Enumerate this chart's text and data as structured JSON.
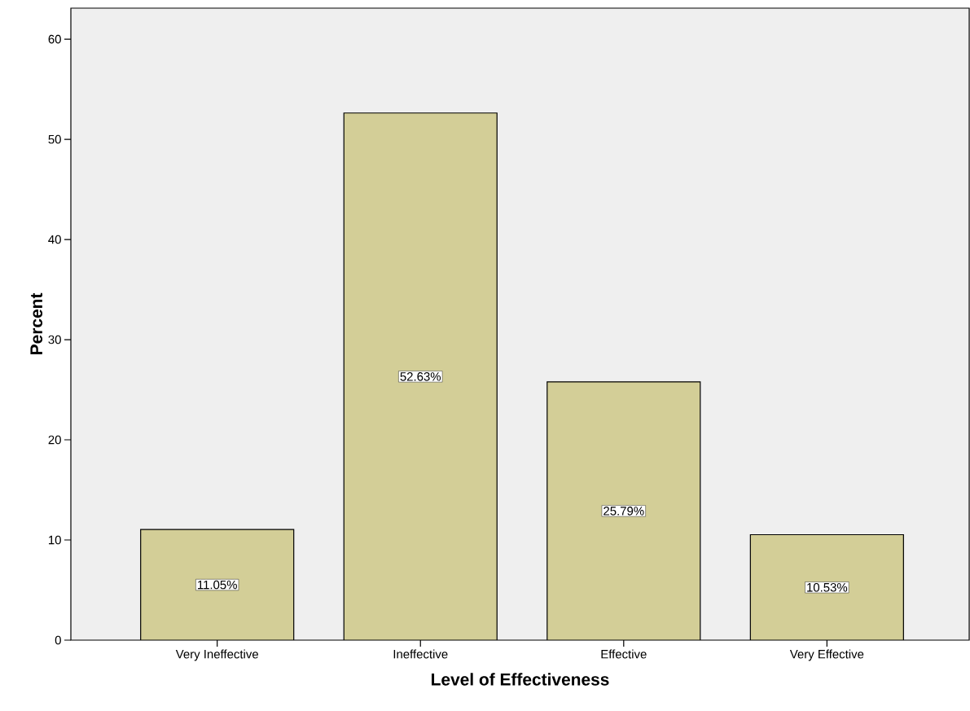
{
  "chart_data": {
    "type": "bar",
    "xlabel": "Level of Effectiveness",
    "ylabel": "Percent",
    "categories": [
      "Very Ineffective",
      "Ineffective",
      "Effective",
      "Very Effective"
    ],
    "values": [
      11.05,
      52.63,
      25.79,
      10.53
    ],
    "value_labels": [
      "11.05%",
      "52.63%",
      "25.79%",
      "10.53%"
    ],
    "color": "#d3ce97",
    "ylim": [
      0,
      63.1
    ],
    "yticks": [
      0,
      10,
      20,
      30,
      40,
      50,
      60
    ],
    "grid": false
  }
}
